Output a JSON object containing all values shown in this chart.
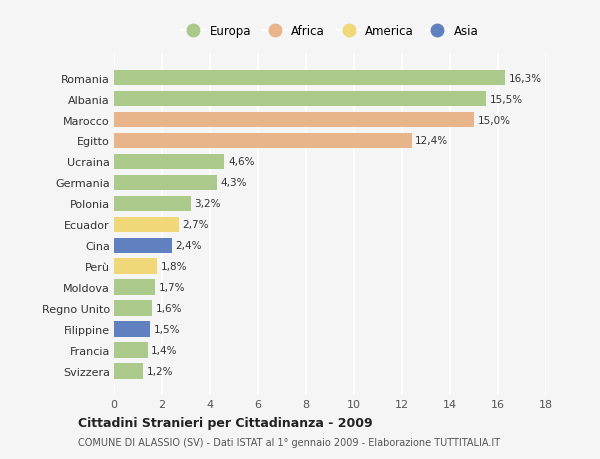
{
  "countries": [
    "Romania",
    "Albania",
    "Marocco",
    "Egitto",
    "Ucraina",
    "Germania",
    "Polonia",
    "Ecuador",
    "Cina",
    "Perù",
    "Moldova",
    "Regno Unito",
    "Filippine",
    "Francia",
    "Svizzera"
  ],
  "values": [
    16.3,
    15.5,
    15.0,
    12.4,
    4.6,
    4.3,
    3.2,
    2.7,
    2.4,
    1.8,
    1.7,
    1.6,
    1.5,
    1.4,
    1.2
  ],
  "continents": [
    "Europa",
    "Europa",
    "Africa",
    "Africa",
    "Europa",
    "Europa",
    "Europa",
    "America",
    "Asia",
    "America",
    "Europa",
    "Europa",
    "Asia",
    "Europa",
    "Europa"
  ],
  "colors": {
    "Europa": "#aac98a",
    "Africa": "#e8b48a",
    "America": "#f0d878",
    "Asia": "#6080c0"
  },
  "title": "Cittadini Stranieri per Cittadinanza - 2009",
  "subtitle": "COMUNE DI ALASSIO (SV) - Dati ISTAT al 1° gennaio 2009 - Elaborazione TUTTITALIA.IT",
  "xlim": [
    0,
    18
  ],
  "xticks": [
    0,
    2,
    4,
    6,
    8,
    10,
    12,
    14,
    16,
    18
  ],
  "background_color": "#f5f5f5",
  "grid_color": "#ffffff",
  "bar_height": 0.75,
  "legend_order": [
    "Europa",
    "Africa",
    "America",
    "Asia"
  ]
}
